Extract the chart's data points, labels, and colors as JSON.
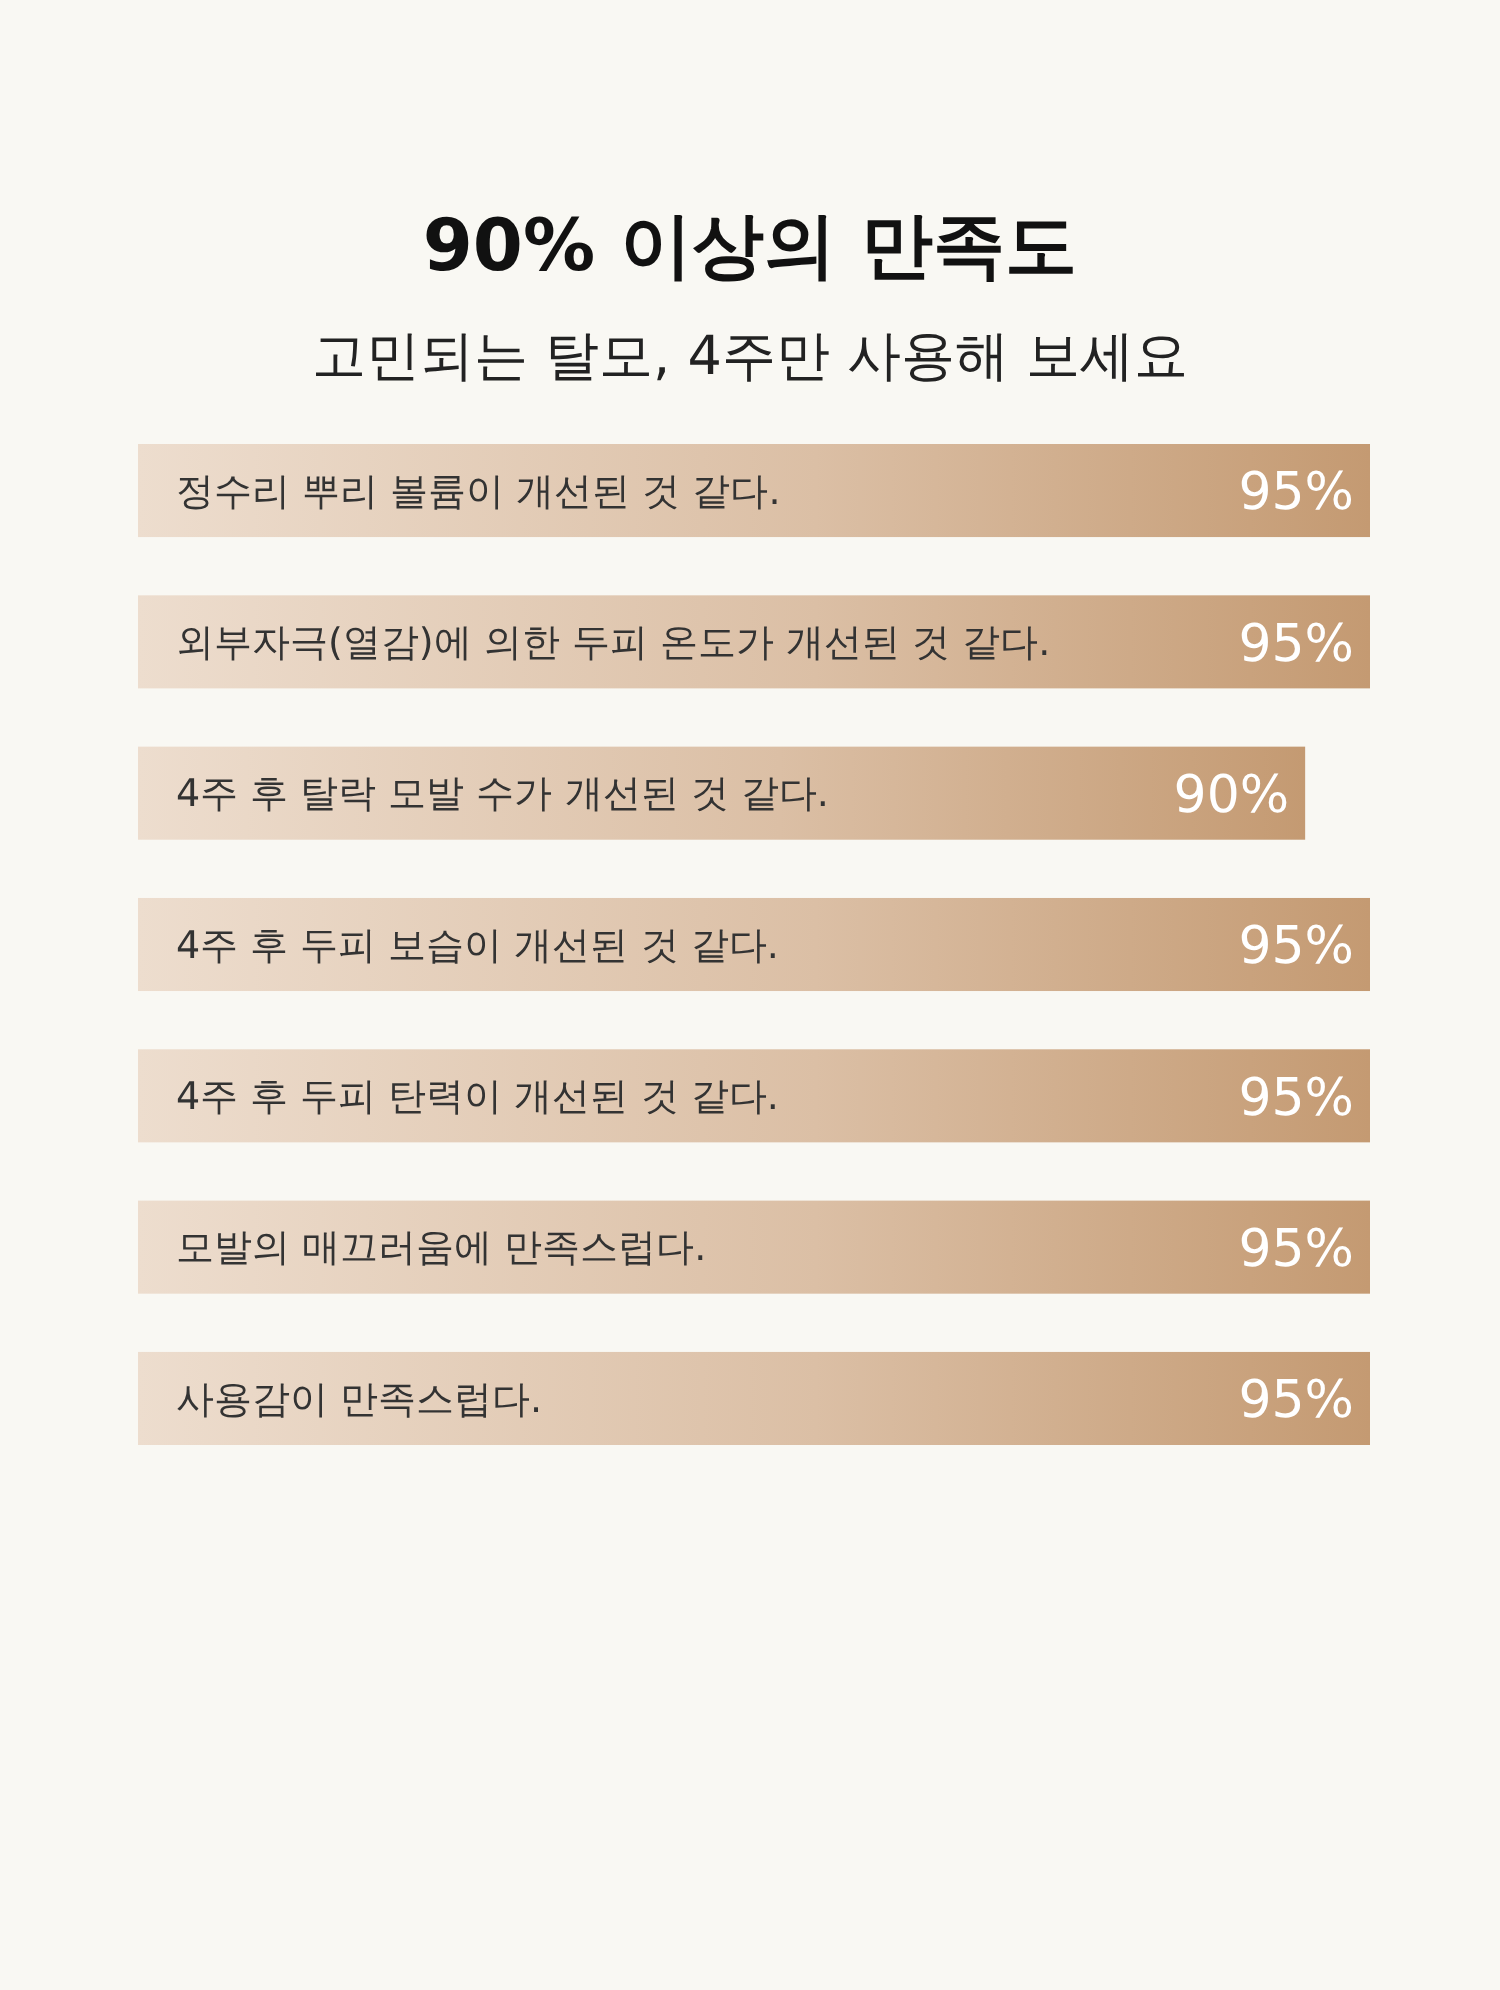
{
  "chart_data": {
    "type": "bar",
    "orientation": "horizontal",
    "title": "90% 이상의 만족도",
    "subtitle": "고민되는 탈모, 4주만 사용해 보세요",
    "categories": [
      "정수리 뿌리 볼륨이 개선된 것 같다.",
      "외부자극(열감)에 의한 두피 온도가 개선된 것 같다.",
      "4주 후 탈락 모발 수가 개선된 것 같다.",
      "4주 후 두피 보습이 개선된 것 같다.",
      "4주 후 두피 탄력이 개선된 것 같다.",
      "모발의 매끄러움에 만족스럽다.",
      "사용감이 만족스럽다."
    ],
    "values": [
      95,
      95,
      90,
      95,
      95,
      95,
      95
    ],
    "value_labels": [
      "95%",
      "95%",
      "90%",
      "95%",
      "95%",
      "95%",
      "95%"
    ],
    "color": "#c49a72"
  }
}
